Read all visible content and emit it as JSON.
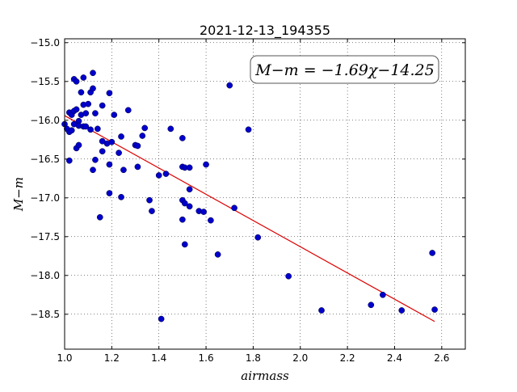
{
  "chart_data": {
    "type": "scatter",
    "title": "2021-12-13_194355",
    "xlabel": "airmass",
    "ylabel": "M−m",
    "annotation": "M−m = −1.69χ−14.25",
    "xlim": [
      1.0,
      2.7
    ],
    "ylim": [
      -18.95,
      -14.95
    ],
    "grid": true,
    "x_ticks": [
      1.0,
      1.2,
      1.4,
      1.6,
      1.8,
      2.0,
      2.2,
      2.4,
      2.6
    ],
    "x_tick_labels": [
      "1.0",
      "1.2",
      "1.4",
      "1.6",
      "1.8",
      "2.0",
      "2.2",
      "2.4",
      "2.6"
    ],
    "y_ticks": [
      -15.0,
      -15.5,
      -16.0,
      -16.5,
      -17.0,
      -17.5,
      -18.0,
      -18.5
    ],
    "y_tick_labels": [
      "−15.0",
      "−15.5",
      "−16.0",
      "−16.5",
      "−17.0",
      "−17.5",
      "−18.0",
      "−18.5"
    ],
    "point_color": "#0000cc",
    "line_color": "#dd0000",
    "fit": {
      "slope": -1.69,
      "intercept": -14.25,
      "x_range": [
        1.0,
        2.57
      ]
    },
    "points": [
      [
        1.0,
        -16.05
      ],
      [
        1.01,
        -16.11
      ],
      [
        1.02,
        -15.9
      ],
      [
        1.02,
        -16.15
      ],
      [
        1.02,
        -16.52
      ],
      [
        1.03,
        -16.13
      ],
      [
        1.03,
        -15.93
      ],
      [
        1.04,
        -16.05
      ],
      [
        1.04,
        -15.88
      ],
      [
        1.04,
        -15.47
      ],
      [
        1.05,
        -15.86
      ],
      [
        1.05,
        -16.36
      ],
      [
        1.05,
        -15.5
      ],
      [
        1.06,
        -16.01
      ],
      [
        1.06,
        -16.32
      ],
      [
        1.06,
        -16.07
      ],
      [
        1.07,
        -15.64
      ],
      [
        1.07,
        -15.93
      ],
      [
        1.08,
        -16.08
      ],
      [
        1.08,
        -15.8
      ],
      [
        1.08,
        -15.45
      ],
      [
        1.09,
        -15.91
      ],
      [
        1.09,
        -16.08
      ],
      [
        1.1,
        -15.79
      ],
      [
        1.11,
        -16.12
      ],
      [
        1.11,
        -15.64
      ],
      [
        1.12,
        -15.59
      ],
      [
        1.12,
        -15.39
      ],
      [
        1.12,
        -16.64
      ],
      [
        1.13,
        -16.51
      ],
      [
        1.13,
        -15.91
      ],
      [
        1.14,
        -16.11
      ],
      [
        1.15,
        -17.25
      ],
      [
        1.16,
        -15.81
      ],
      [
        1.16,
        -16.27
      ],
      [
        1.16,
        -16.4
      ],
      [
        1.18,
        -16.3
      ],
      [
        1.19,
        -15.65
      ],
      [
        1.19,
        -16.57
      ],
      [
        1.19,
        -16.94
      ],
      [
        1.2,
        -16.28
      ],
      [
        1.21,
        -15.93
      ],
      [
        1.23,
        -16.42
      ],
      [
        1.24,
        -16.21
      ],
      [
        1.24,
        -16.99
      ],
      [
        1.25,
        -16.64
      ],
      [
        1.27,
        -15.87
      ],
      [
        1.3,
        -16.32
      ],
      [
        1.31,
        -16.6
      ],
      [
        1.31,
        -16.33
      ],
      [
        1.33,
        -16.2
      ],
      [
        1.34,
        -16.1
      ],
      [
        1.36,
        -17.03
      ],
      [
        1.37,
        -17.17
      ],
      [
        1.4,
        -16.71
      ],
      [
        1.41,
        -18.56
      ],
      [
        1.43,
        -16.69
      ],
      [
        1.45,
        -16.11
      ],
      [
        1.5,
        -16.23
      ],
      [
        1.5,
        -16.6
      ],
      [
        1.5,
        -17.03
      ],
      [
        1.5,
        -17.28
      ],
      [
        1.51,
        -16.61
      ],
      [
        1.51,
        -17.07
      ],
      [
        1.51,
        -17.6
      ],
      [
        1.53,
        -16.61
      ],
      [
        1.53,
        -17.11
      ],
      [
        1.53,
        -16.89
      ],
      [
        1.57,
        -17.17
      ],
      [
        1.59,
        -17.18
      ],
      [
        1.6,
        -16.57
      ],
      [
        1.62,
        -17.29
      ],
      [
        1.65,
        -17.73
      ],
      [
        1.7,
        -15.55
      ],
      [
        1.72,
        -17.13
      ],
      [
        1.78,
        -16.12
      ],
      [
        1.82,
        -17.51
      ],
      [
        1.95,
        -18.01
      ],
      [
        2.09,
        -18.45
      ],
      [
        2.3,
        -18.38
      ],
      [
        2.35,
        -18.25
      ],
      [
        2.43,
        -18.45
      ],
      [
        2.56,
        -17.71
      ],
      [
        2.57,
        -18.44
      ]
    ]
  }
}
